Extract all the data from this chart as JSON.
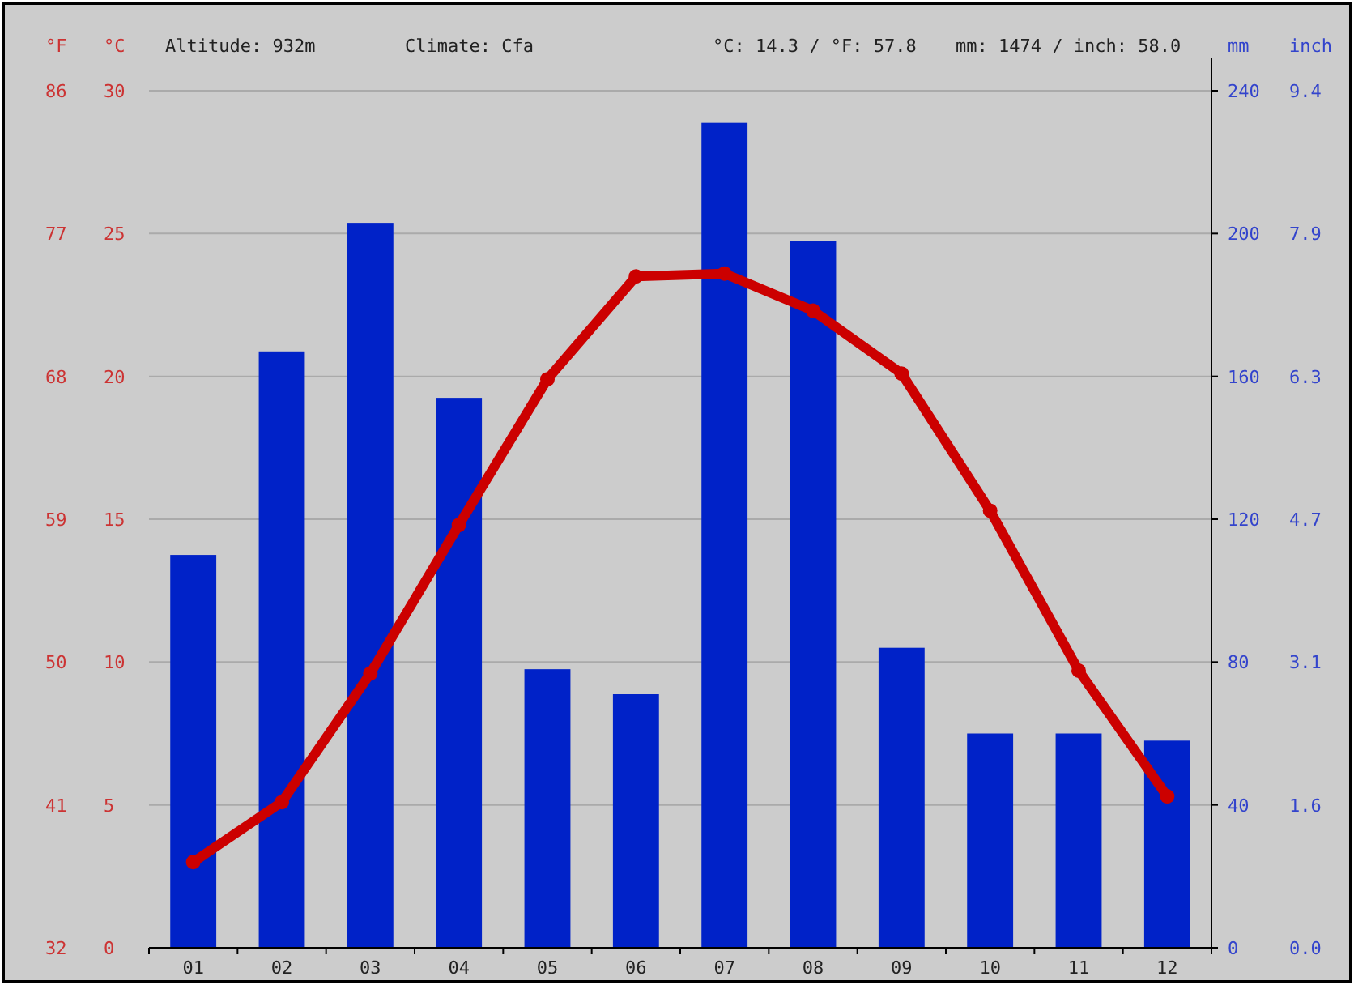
{
  "chart_data": {
    "type": "bar",
    "categories": [
      "01",
      "02",
      "03",
      "04",
      "05",
      "06",
      "07",
      "08",
      "09",
      "10",
      "11",
      "12"
    ],
    "series": [
      {
        "axis": "y2",
        "color": "#0022c8",
        "values": [
          110,
          167,
          203,
          154,
          78,
          71,
          231,
          198,
          84,
          60,
          60,
          58
        ]
      },
      {
        "type": "line",
        "axis": "y",
        "color": "#cc0000",
        "marker": "circle",
        "line_style": "solid",
        "values": [
          3.0,
          5.1,
          9.6,
          14.8,
          19.9,
          23.5,
          23.6,
          22.3,
          20.1,
          15.3,
          9.7,
          5.3
        ]
      }
    ],
    "ylabel": "°C",
    "ylim": [
      0,
      30
    ],
    "yticks": [
      0,
      5,
      10,
      15,
      20,
      25,
      30
    ],
    "y3label": "°F",
    "y3lim": [
      32,
      86
    ],
    "y3ticks": [
      32,
      41,
      50,
      59,
      68,
      77,
      86
    ],
    "y2label": "mm",
    "y2lim": [
      0,
      240
    ],
    "y2ticks": [
      0,
      40,
      80,
      120,
      160,
      200,
      240
    ],
    "annotations": [
      "Altitude: 932m",
      "Climate: Cfa",
      "°C: 14.3 / °F: 57.8",
      "mm: 1474 / inch: 58.0",
      "inch",
      "0.0",
      "1.6",
      "3.1",
      "4.7",
      "6.3",
      "7.9",
      "9.4"
    ],
    "grid": "y"
  }
}
